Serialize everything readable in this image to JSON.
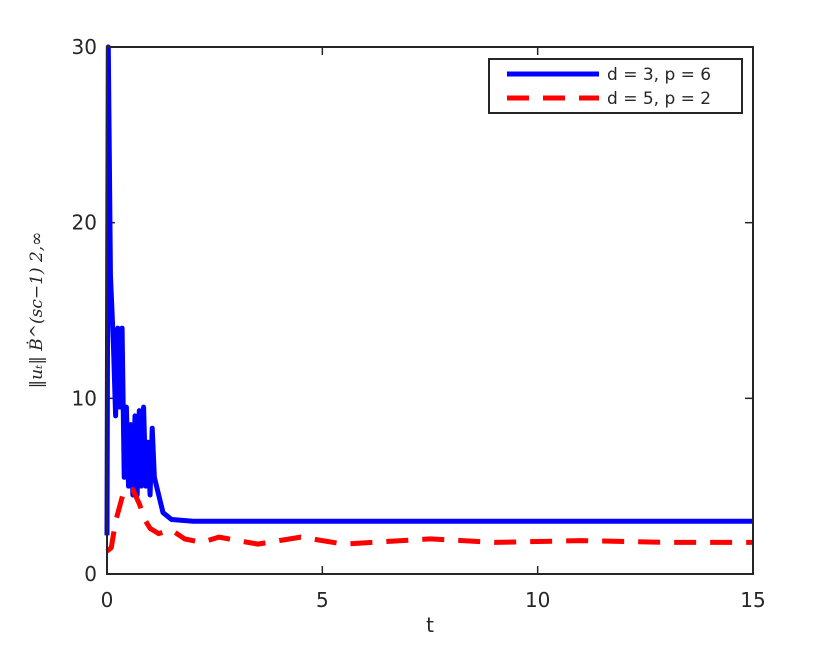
{
  "chart_data": {
    "type": "line",
    "xlabel": "t",
    "ylabel": "‖uₜ‖ Ḃ^(sc−1) 2,∞",
    "xlim": [
      0,
      15
    ],
    "ylim": [
      0,
      30
    ],
    "xticks": [
      0,
      5,
      10,
      15
    ],
    "yticks": [
      0,
      10,
      20,
      30
    ],
    "legend": "upper right",
    "series": [
      {
        "name": "d = 3, p = 6",
        "color": "#0000ff",
        "dash": false,
        "x": [
          0,
          0.03,
          0.08,
          0.15,
          0.2,
          0.25,
          0.3,
          0.35,
          0.4,
          0.45,
          0.5,
          0.55,
          0.6,
          0.65,
          0.7,
          0.75,
          0.8,
          0.85,
          0.9,
          0.95,
          1.0,
          1.05,
          1.1,
          1.2,
          1.3,
          1.5,
          2,
          3,
          5,
          10,
          15
        ],
        "values": [
          2.2,
          30,
          17,
          13,
          9,
          14,
          9.5,
          14,
          5.5,
          9.5,
          5,
          8.5,
          4.5,
          9,
          4.5,
          9.3,
          5,
          9.5,
          5,
          7.5,
          4.5,
          8.3,
          5.5,
          4.5,
          3.5,
          3.1,
          3.0,
          3.0,
          3.0,
          3.0,
          3.0
        ]
      },
      {
        "name": "d = 5, p = 2",
        "color": "#ff0000",
        "dash": true,
        "x": [
          0,
          0.1,
          0.2,
          0.4,
          0.6,
          0.75,
          0.9,
          1.0,
          1.2,
          1.5,
          1.8,
          2.2,
          2.6,
          3.5,
          4.5,
          5.5,
          7.5,
          9,
          11,
          13,
          15
        ],
        "values": [
          1.3,
          1.5,
          3,
          4.8,
          4.8,
          4,
          3,
          2.6,
          2.3,
          2.5,
          2.0,
          1.8,
          2.1,
          1.7,
          2.1,
          1.7,
          2.0,
          1.8,
          1.9,
          1.8,
          1.8
        ]
      }
    ]
  }
}
